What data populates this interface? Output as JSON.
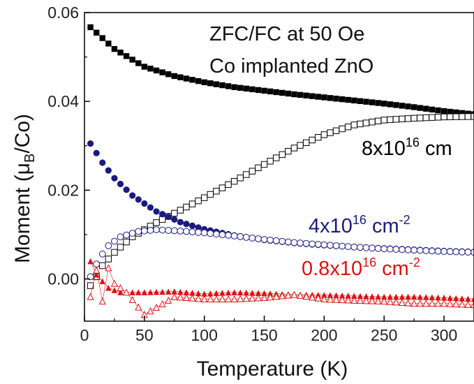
{
  "chart_data": {
    "type": "scatter",
    "xlabel": "Temperature (K)",
    "ylabel": {
      "prefix": "Moment (",
      "mu": "μ",
      "sub": "B",
      "suffix": "/Co)"
    },
    "xlim": [
      0,
      325
    ],
    "ylim": [
      -0.0095,
      0.06
    ],
    "xticks": [
      0,
      50,
      100,
      150,
      200,
      250,
      300
    ],
    "xtick_labels": [
      "0",
      "50",
      "100",
      "150",
      "200",
      "250",
      "300"
    ],
    "yticks": [
      0.0,
      0.02,
      0.04,
      0.06
    ],
    "ytick_labels": [
      "0.00",
      "0.02",
      "0.04",
      "0.06"
    ],
    "grid": false,
    "annotations": {
      "title_line1": "ZFC/FC at 50 Oe",
      "title_line2": "Co implanted ZnO",
      "label_8": {
        "base": "8x10",
        "exp": "16",
        "unit": " cm"
      },
      "label_4": {
        "base": "4x10",
        "exp": "16",
        "unit": " cm",
        "unit_exp": "-2"
      },
      "label_08": {
        "base": "0.8x10",
        "exp": "16",
        "unit": " cm",
        "unit_exp": "-2"
      }
    },
    "series": [
      {
        "group": "8x10^16 cm",
        "mode": "FC",
        "color": "#000000",
        "marker": "filled-square",
        "x": [
          5,
          25,
          50,
          75,
          100,
          125,
          150,
          175,
          200,
          225,
          250,
          275,
          300,
          325
        ],
        "y": [
          0.0567,
          0.0518,
          0.0478,
          0.0457,
          0.0443,
          0.0432,
          0.0424,
          0.0416,
          0.0409,
          0.0402,
          0.0395,
          0.0387,
          0.0378,
          0.0371
        ]
      },
      {
        "group": "8x10^16 cm",
        "mode": "ZFC",
        "color": "#000000",
        "marker": "open-square",
        "x": [
          5,
          10,
          15,
          25,
          40,
          60,
          80,
          100,
          125,
          150,
          175,
          200,
          225,
          250,
          275,
          300,
          325
        ],
        "y": [
          -0.0015,
          0.0005,
          0.003,
          0.006,
          0.0095,
          0.0127,
          0.0155,
          0.0183,
          0.022,
          0.0258,
          0.0295,
          0.0325,
          0.0347,
          0.0358,
          0.0362,
          0.0365,
          0.0366
        ]
      },
      {
        "group": "4x10^16 cm-2",
        "mode": "FC",
        "color": "#1a1a80",
        "marker": "filled-circle",
        "x": [
          5,
          15,
          25,
          40,
          60,
          80,
          100,
          125,
          150,
          175,
          200,
          225,
          250,
          275,
          300,
          325
        ],
        "y": [
          0.0305,
          0.0262,
          0.0227,
          0.0188,
          0.0152,
          0.0128,
          0.0112,
          0.0098,
          0.0088,
          0.0081,
          0.0076,
          0.0072,
          0.0069,
          0.0066,
          0.0063,
          0.0061
        ]
      },
      {
        "group": "4x10^16 cm-2",
        "mode": "ZFC",
        "color": "#1a1a80",
        "marker": "open-circle",
        "x": [
          5,
          12,
          20,
          30,
          45,
          60,
          80,
          100,
          125,
          150,
          175,
          200,
          225,
          250,
          275,
          300,
          325
        ],
        "y": [
          0.0005,
          0.0045,
          0.0075,
          0.0095,
          0.0107,
          0.0111,
          0.0108,
          0.0104,
          0.0097,
          0.0089,
          0.0082,
          0.0077,
          0.0072,
          0.0068,
          0.0065,
          0.0062,
          0.006
        ]
      },
      {
        "group": "0.8x10^16 cm-2",
        "mode": "FC",
        "color": "#dd1111",
        "marker": "filled-triangle",
        "x": [
          5,
          10,
          20,
          30,
          50,
          75,
          100,
          125,
          150,
          175,
          200,
          225,
          250,
          275,
          300,
          325
        ],
        "y": [
          0.004,
          0.001,
          -0.002,
          -0.003,
          -0.003,
          -0.0028,
          -0.0033,
          -0.003,
          -0.0032,
          -0.0035,
          -0.0036,
          -0.0038,
          -0.004,
          -0.004,
          -0.0042,
          -0.0045
        ]
      },
      {
        "group": "0.8x10^16 cm-2",
        "mode": "ZFC",
        "color": "#dd1111",
        "marker": "open-triangle",
        "x": [
          5,
          10,
          15,
          20,
          25,
          35,
          50,
          75,
          100,
          125,
          150,
          175,
          200,
          225,
          250,
          275,
          300,
          325
        ],
        "y": [
          -0.004,
          0.002,
          -0.005,
          0.0025,
          -0.001,
          -0.003,
          -0.008,
          -0.004,
          -0.0045,
          -0.0045,
          -0.0042,
          -0.0035,
          -0.0045,
          -0.0048,
          -0.005,
          -0.0055,
          -0.0055,
          -0.0058
        ]
      }
    ]
  }
}
